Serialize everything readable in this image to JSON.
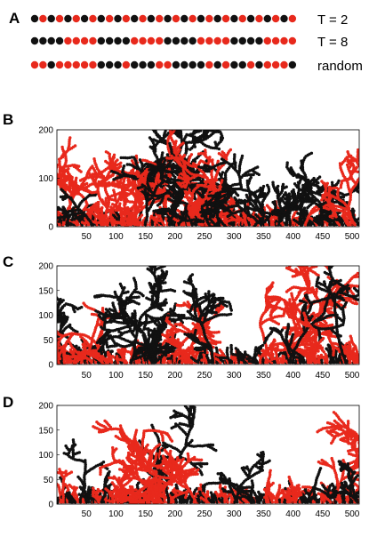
{
  "figure": {
    "colors": {
      "red": "#e8291c",
      "black": "#111111"
    },
    "panel_a": {
      "letter": "A",
      "rows": [
        {
          "label": "T = 2",
          "count": 32,
          "pattern": "alternate"
        },
        {
          "label": "T = 8",
          "count": 32,
          "pattern": "blocks-of-4"
        },
        {
          "label": "random",
          "count": 32,
          "pattern": "random"
        }
      ]
    }
  },
  "chart_data": [
    {
      "type": "scatter",
      "panel": "B",
      "title": "",
      "xlabel": "",
      "ylabel": "",
      "xlim": [
        0,
        512
      ],
      "ylim": [
        0,
        200
      ],
      "xticks": [
        50,
        100,
        150,
        200,
        250,
        300,
        350,
        400,
        450,
        500
      ],
      "yticks": [
        0,
        100,
        200
      ],
      "trees": [
        {
          "x": 10,
          "height": 150,
          "color": "red"
        },
        {
          "x": 60,
          "height": 75,
          "color": "black"
        },
        {
          "x": 75,
          "height": 150,
          "color": "red"
        },
        {
          "x": 125,
          "height": 155,
          "color": "red"
        },
        {
          "x": 150,
          "height": 110,
          "color": "black"
        },
        {
          "x": 190,
          "height": 198,
          "color": "black"
        },
        {
          "x": 215,
          "height": 175,
          "color": "red"
        },
        {
          "x": 250,
          "height": 148,
          "color": "black"
        },
        {
          "x": 300,
          "height": 130,
          "color": "black"
        },
        {
          "x": 320,
          "height": 175,
          "color": "red"
        },
        {
          "x": 345,
          "height": 192,
          "color": "black"
        },
        {
          "x": 375,
          "height": 140,
          "color": "black"
        },
        {
          "x": 420,
          "height": 80,
          "color": "red"
        },
        {
          "x": 450,
          "height": 95,
          "color": "black"
        },
        {
          "x": 500,
          "height": 150,
          "color": "red"
        }
      ]
    },
    {
      "type": "scatter",
      "panel": "C",
      "title": "",
      "xlabel": "",
      "ylabel": "",
      "xlim": [
        0,
        512
      ],
      "ylim": [
        0,
        200
      ],
      "xticks": [
        50,
        100,
        150,
        200,
        250,
        300,
        350,
        400,
        450,
        500
      ],
      "yticks": [
        0,
        50,
        100,
        150,
        200
      ],
      "trees": [
        {
          "x": 8,
          "height": 115,
          "color": "black"
        },
        {
          "x": 40,
          "height": 100,
          "color": "red"
        },
        {
          "x": 85,
          "height": 175,
          "color": "red"
        },
        {
          "x": 125,
          "height": 160,
          "color": "black"
        },
        {
          "x": 165,
          "height": 120,
          "color": "black"
        },
        {
          "x": 200,
          "height": 110,
          "color": "red"
        },
        {
          "x": 225,
          "height": 100,
          "color": "red"
        },
        {
          "x": 265,
          "height": 125,
          "color": "black"
        },
        {
          "x": 345,
          "height": 195,
          "color": "red"
        },
        {
          "x": 395,
          "height": 130,
          "color": "black"
        },
        {
          "x": 440,
          "height": 95,
          "color": "red"
        },
        {
          "x": 490,
          "height": 160,
          "color": "black"
        }
      ]
    },
    {
      "type": "scatter",
      "panel": "D",
      "title": "",
      "xlabel": "",
      "ylabel": "",
      "xlim": [
        0,
        512
      ],
      "ylim": [
        0,
        200
      ],
      "xticks": [
        50,
        100,
        150,
        200,
        250,
        300,
        350,
        400,
        450,
        500
      ],
      "yticks": [
        0,
        50,
        100,
        150,
        200
      ],
      "trees": [
        {
          "x": 10,
          "height": 55,
          "color": "red"
        },
        {
          "x": 40,
          "height": 90,
          "color": "black"
        },
        {
          "x": 75,
          "height": 65,
          "color": "black"
        },
        {
          "x": 110,
          "height": 60,
          "color": "red"
        },
        {
          "x": 155,
          "height": 115,
          "color": "red"
        },
        {
          "x": 190,
          "height": 145,
          "color": "black"
        },
        {
          "x": 235,
          "height": 170,
          "color": "red"
        },
        {
          "x": 300,
          "height": 95,
          "color": "black"
        },
        {
          "x": 335,
          "height": 90,
          "color": "black"
        },
        {
          "x": 355,
          "height": 70,
          "color": "red"
        },
        {
          "x": 400,
          "height": 55,
          "color": "red"
        },
        {
          "x": 425,
          "height": 80,
          "color": "black"
        },
        {
          "x": 480,
          "height": 195,
          "color": "red"
        },
        {
          "x": 510,
          "height": 70,
          "color": "black"
        }
      ]
    }
  ]
}
